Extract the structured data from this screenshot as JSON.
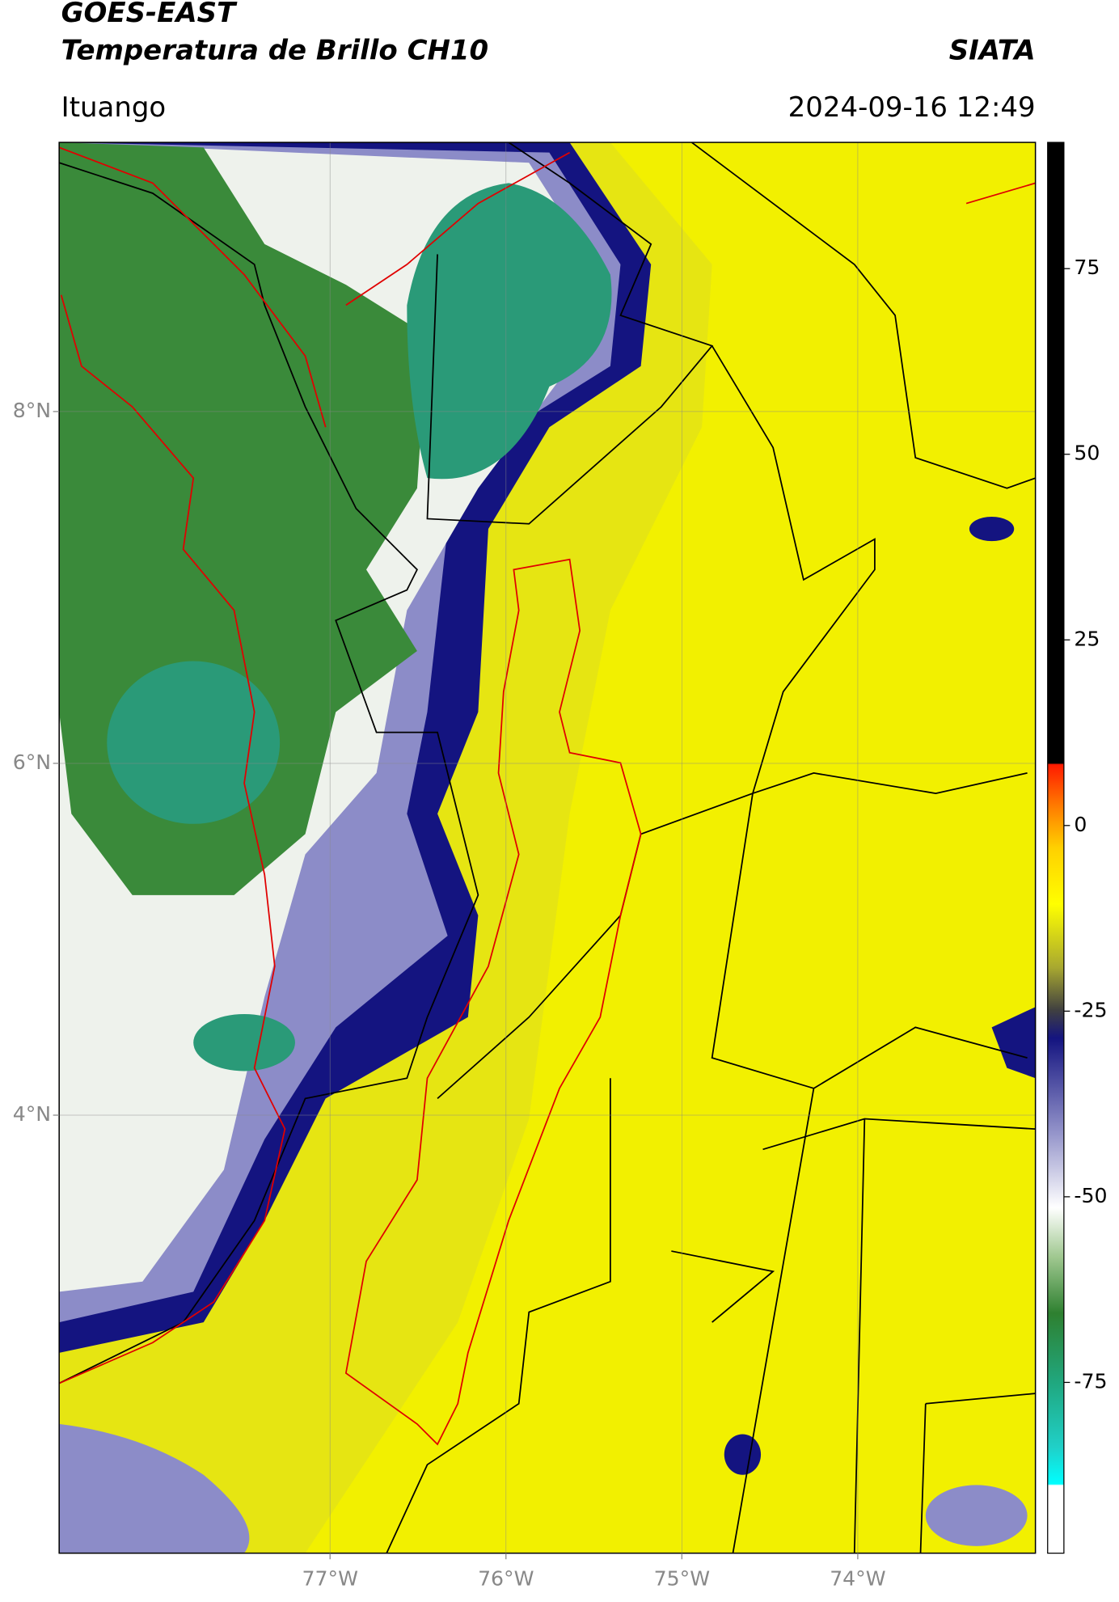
{
  "header": {
    "title_line1": "GOES-EAST",
    "title_line2": "Temperatura de Brillo CH10",
    "source": "SIATA",
    "region": "Ituango",
    "datetime": "2024-09-16 12:49"
  },
  "map": {
    "lon_range": [
      -78.54,
      -72.99
    ],
    "lat_range": [
      1.51,
      9.53
    ],
    "lon_ticks": [
      {
        "value": -77,
        "label": "77°W"
      },
      {
        "value": -76,
        "label": "76°W"
      },
      {
        "value": -75,
        "label": "75°W"
      },
      {
        "value": -74,
        "label": "74°W"
      }
    ],
    "lat_ticks": [
      {
        "value": 8,
        "label": "8°N"
      },
      {
        "value": 6,
        "label": "6°N"
      },
      {
        "value": 4,
        "label": "4°N"
      }
    ]
  },
  "colorbar": {
    "range": [
      -98,
      92
    ],
    "ticks": [
      75,
      50,
      25,
      0,
      -25,
      -50,
      -75
    ]
  }
}
